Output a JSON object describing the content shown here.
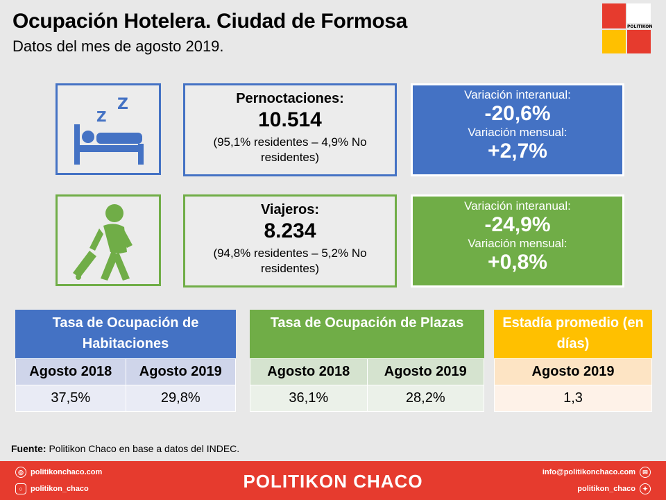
{
  "header": {
    "title": "Ocupación Hotelera. Ciudad de Formosa",
    "subtitle": "Datos del mes de agosto 2019.",
    "logo_text": "POLITIKON"
  },
  "colors": {
    "blue": "#4472c4",
    "green": "#70ad47",
    "gold": "#ffc000",
    "red": "#e63b2e"
  },
  "overnight": {
    "icon": "sleeping-bed-icon",
    "label": "Pernoctaciones:",
    "value": "10.514",
    "note": "(95,1% residentes – 4,9% No residentes)",
    "var_interanual_label": "Variación interanual:",
    "var_interanual": "-20,6%",
    "var_mensual_label": "Variación mensual:",
    "var_mensual": "+2,7%"
  },
  "travelers": {
    "icon": "traveler-with-suitcase-icon",
    "label": "Viajeros:",
    "value": "8.234",
    "note": "(94,8% residentes – 5,2% No residentes)",
    "var_interanual_label": "Variación interanual:",
    "var_interanual": "-24,9%",
    "var_mensual_label": "Variación mensual:",
    "var_mensual": "+0,8%"
  },
  "rooms": {
    "title": "Tasa de Ocupación de Habitaciones",
    "col1": "Agosto 2018",
    "col2": "Agosto 2019",
    "val1": "37,5%",
    "val2": "29,8%"
  },
  "places": {
    "title": "Tasa de Ocupación de Plazas",
    "col1": "Agosto 2018",
    "col2": "Agosto 2019",
    "val1": "36,1%",
    "val2": "28,2%"
  },
  "stay": {
    "title": "Estadía promedio (en días)",
    "col1": "Agosto 2019",
    "val1": "1,3"
  },
  "source": {
    "label": "Fuente:",
    "text": " Politikon Chaco en base a datos del INDEC."
  },
  "footer": {
    "brand": "POLITIKON CHACO",
    "website": "politikonchaco.com",
    "instagram": "politikon_chaco",
    "email": "info@politikonchaco.com",
    "twitter": "politikon_chaco"
  }
}
